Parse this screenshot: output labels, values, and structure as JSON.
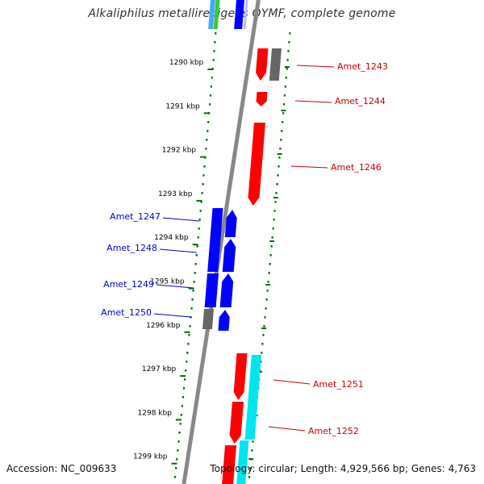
{
  "title": "Alkaliphilus metalliredigens QYMF, complete genome",
  "accession_text": "Accession: NC_009633",
  "summary_text": "Topology: circular; Length: 4,929,566 bp; Genes: 4,763",
  "colors": {
    "forward_gene": "#0000ff",
    "reverse_gene": "#ff0000",
    "rna_gene": "#00e5ee",
    "other_feature": "#666666",
    "scale_tick": "#007000",
    "backbone": "#888888",
    "label_forward": "#0000cc",
    "label_reverse": "#cc0000"
  },
  "scale": {
    "unit": "kbp",
    "ticks": [
      {
        "value": 1290,
        "label": "1290 kbp"
      },
      {
        "value": 1291,
        "label": "1291 kbp"
      },
      {
        "value": 1292,
        "label": "1292 kbp"
      },
      {
        "value": 1293,
        "label": "1293 kbp"
      },
      {
        "value": 1294,
        "label": "1294 kbp"
      },
      {
        "value": 1295,
        "label": "1295 kbp"
      },
      {
        "value": 1296,
        "label": "1296 kbp"
      },
      {
        "value": 1297,
        "label": "1297 kbp"
      },
      {
        "value": 1298,
        "label": "1298 kbp"
      },
      {
        "value": 1299,
        "label": "1299 kbp"
      }
    ]
  },
  "gene_labels": [
    {
      "name": "Amet_1243",
      "strand": "reverse"
    },
    {
      "name": "Amet_1244",
      "strand": "reverse"
    },
    {
      "name": "Amet_1246",
      "strand": "reverse"
    },
    {
      "name": "Amet_1247",
      "strand": "forward"
    },
    {
      "name": "Amet_1248",
      "strand": "forward"
    },
    {
      "name": "Amet_1249",
      "strand": "forward"
    },
    {
      "name": "Amet_1250",
      "strand": "forward"
    },
    {
      "name": "Amet_1251",
      "strand": "reverse"
    },
    {
      "name": "Amet_1252",
      "strand": "reverse"
    }
  ]
}
